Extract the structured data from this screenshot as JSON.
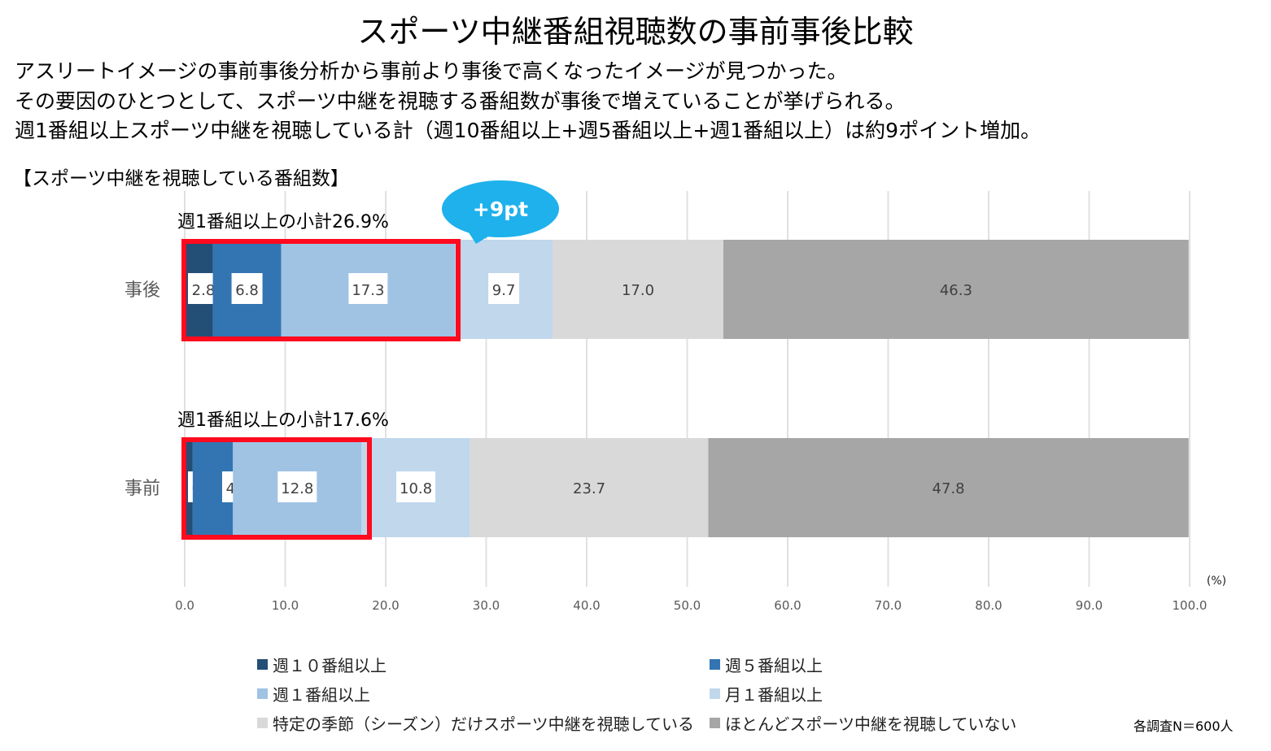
{
  "title": "スポーツ中継番組視聴数の事前事後比較",
  "description_lines": [
    "アスリートイメージの事前事後分析から事前より事後で高くなったイメージが見つかった。",
    "その要因のひとつとして、スポーツ中継を視聴する番組数が事後で増えていることが挙げられる。",
    "週1番組以上スポーツ中継を視聴している計（週10番組以上+週5番組以上+週1番組以上）は約9ポイント増加。"
  ],
  "section_label": "【スポーツ中継を視聴している番組数】",
  "callout": "+9pt",
  "sample_note": "各調査N＝600人",
  "colors": {
    "s1": "#234e75",
    "s2": "#3375b2",
    "s3": "#a0c3e4",
    "s4": "#c0d7ec",
    "s5": "#d9d9d9",
    "s6": "#a6a6a6",
    "highlight": "#ff0a1e",
    "callout": "#1eb1ec"
  },
  "chart_data": {
    "type": "bar",
    "orientation": "horizontal-stacked",
    "categories": [
      "事後",
      "事前"
    ],
    "subtotals": [
      "週1番組以上の小計26.9%",
      "週1番組以上の小計17.6%"
    ],
    "series": [
      {
        "name": "週１０番組以上",
        "values": [
          2.8,
          0.8
        ]
      },
      {
        "name": "週５番組以上",
        "values": [
          6.8,
          4.0
        ]
      },
      {
        "name": "週１番組以上",
        "values": [
          17.3,
          12.8
        ]
      },
      {
        "name": "月１番組以上",
        "values": [
          9.7,
          10.8
        ]
      },
      {
        "name": "特定の季節（シーズン）だけスポーツ中継を視聴している",
        "values": [
          17.0,
          23.7
        ]
      },
      {
        "name": "ほとんどスポーツ中継を視聴していない",
        "values": [
          46.3,
          47.8
        ]
      }
    ],
    "xlim": [
      0,
      100
    ],
    "xticks": [
      "0.0",
      "10.0",
      "20.0",
      "30.0",
      "40.0",
      "50.0",
      "60.0",
      "70.0",
      "80.0",
      "90.0",
      "100.0"
    ],
    "xunit": "(%)",
    "grid": true,
    "legend": "bottom"
  }
}
